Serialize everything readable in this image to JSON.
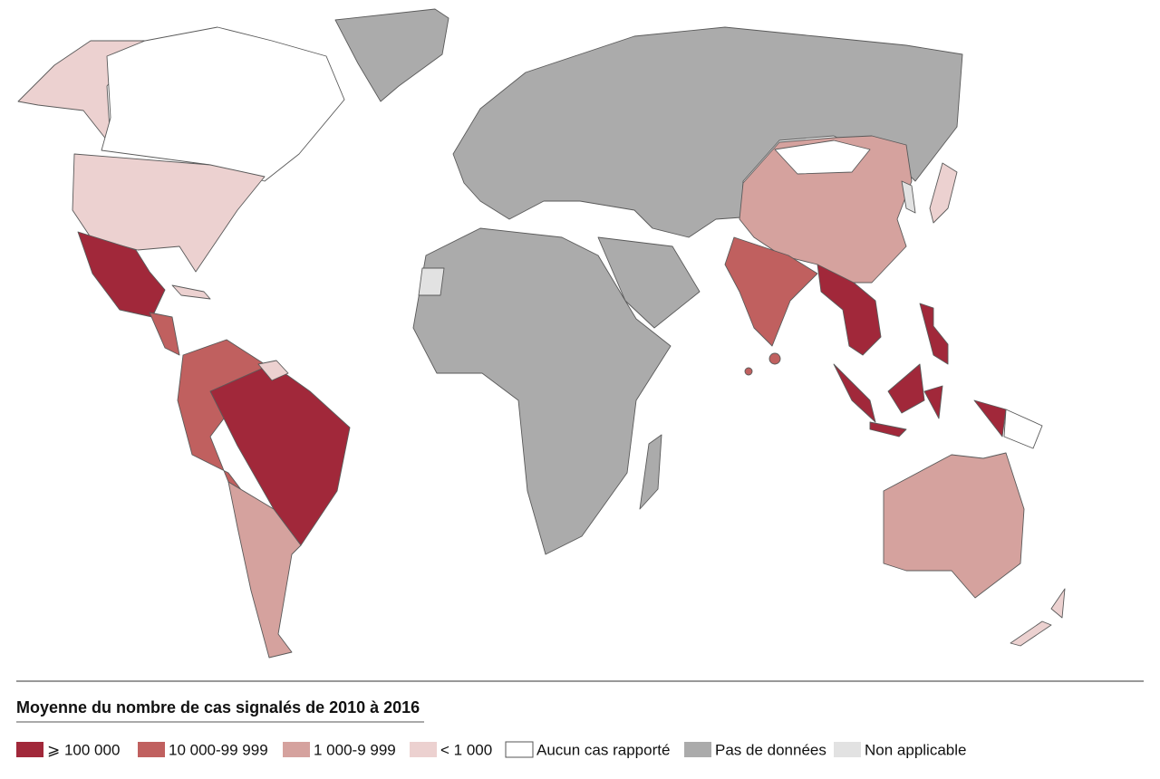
{
  "legend": {
    "title": "Moyenne du nombre de cas signalés de 2010 à 2016",
    "items": [
      {
        "label": "⩾ 100 000",
        "color": "#a1283a"
      },
      {
        "label": "10 000-99 999",
        "color": "#c0605f"
      },
      {
        "label": "1 000-9 999",
        "color": "#d5a29e"
      },
      {
        "label": "< 1 000",
        "color": "#ecd1d0"
      },
      {
        "label": "Aucun cas rapporté",
        "color": "#ffffff"
      },
      {
        "label": "Pas de données",
        "color": "#ababab"
      },
      {
        "label": "Non applicable",
        "color": "#e2e2e2"
      }
    ]
  }
}
